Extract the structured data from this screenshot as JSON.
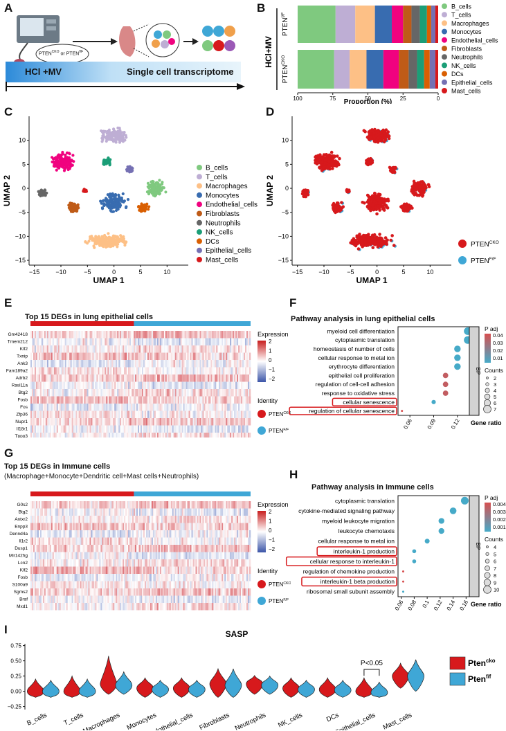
{
  "panels": {
    "a": {
      "letter": "A",
      "pten_label": "PTEN",
      "pten_cko_sup": "CKO",
      "or_text": " or ",
      "pten_ff_sup": "f/F",
      "banner_left": "HCl +MV",
      "banner_right": "Single cell transcriptome"
    },
    "b": {
      "letter": "B",
      "group_label": "HCl+MV",
      "row1_label": "PTEN",
      "row1_sup": "f/F",
      "row2_label": "PTEN",
      "row2_sup": "CKO",
      "xlabel": "Proportion (%)",
      "xticks": [
        "100",
        "75",
        "50",
        "25",
        "0"
      ]
    },
    "c": {
      "letter": "C",
      "xlabel": "UMAP 1",
      "ylabel": "UMAP 2"
    },
    "d": {
      "letter": "D",
      "xlabel": "UMAP 1",
      "ylabel": "UMAP 2",
      "legend": [
        {
          "label": "PTEN",
          "sup": "CKO",
          "color": "#d7191c"
        },
        {
          "label": "PTEN",
          "sup": "F/F",
          "color": "#3fa7d6"
        }
      ]
    },
    "e": {
      "letter": "E",
      "title": "Top 15 DEGs in lung epithelial cells",
      "legend_title": "Expression",
      "legend_ticks": [
        "2",
        "1",
        "0",
        "−1",
        "−2"
      ],
      "identity_title": "Identity",
      "identity": [
        {
          "label": "PTEN",
          "sup": "CKO",
          "color": "#d7191c"
        },
        {
          "label": "PTEN",
          "sup": "F/F",
          "color": "#3fa7d6"
        }
      ],
      "genes": [
        "Gm42418",
        "Tmem212",
        "Klf2",
        "Txnip",
        "Ank3",
        "Fam189a2",
        "Adrb2",
        "Rasl11a",
        "Btg2",
        "Fosb",
        "Fos",
        "Zfp36",
        "Nupr1",
        "Il18r1",
        "Tppp3"
      ]
    },
    "f": {
      "letter": "F",
      "title": "Pathway analysis in lung epithelial cells",
      "xlabel": "Gene ratio",
      "strip": "BP",
      "padj_title": "P adj",
      "padj_ticks": [
        "0.04",
        "0.03",
        "0.02",
        "0.01"
      ],
      "counts_title": "Counts",
      "counts": [
        "2",
        "3",
        "4",
        "5",
        "6",
        "7"
      ]
    },
    "g": {
      "letter": "G",
      "title": "Top 15 DEGs in Immune cells",
      "subtitle": "(Macrophage+Monocyte+Dendritic cell+Mast cells+Neutrophils)",
      "legend_title": "Expression",
      "legend_ticks": [
        "2",
        "1",
        "0",
        "−1",
        "−2"
      ],
      "identity_title": "Identity",
      "identity": [
        {
          "label": "PTEN",
          "sup": "CKO",
          "color": "#d7191c"
        },
        {
          "label": "PTEN",
          "sup": "F/F",
          "color": "#3fa7d6"
        }
      ],
      "genes": [
        "G0s2",
        "Btg2",
        "Antxr2",
        "Enpp3",
        "Dennd4a",
        "Il1r2",
        "Dusp1",
        "Mir142hg",
        "Lcn2",
        "Klf2",
        "Fosb",
        "S100a9",
        "Sgms2",
        "Braf",
        "Mxd1"
      ]
    },
    "h": {
      "letter": "H",
      "title": "Pathway analysis in Immune cells",
      "xlabel": "Gene ratio",
      "strip": "BP",
      "padj_title": "P adj",
      "padj_ticks": [
        "0.004",
        "0.003",
        "0.002",
        "0.001"
      ],
      "counts_title": "Counts",
      "counts": [
        "4",
        "5",
        "6",
        "7",
        "8",
        "9",
        "10"
      ]
    },
    "i": {
      "letter": "I",
      "title": "SASP",
      "pvalue": "P<0.05",
      "legend": [
        {
          "label": "Pten",
          "sup": "cko",
          "color": "#d7191c"
        },
        {
          "label": "Pten",
          "sup": "f/f",
          "color": "#3fa7d6"
        }
      ]
    }
  },
  "cell_types": [
    {
      "name": "B_cells",
      "color": "#7fc97f"
    },
    {
      "name": "T_cells",
      "color": "#beaed4"
    },
    {
      "name": "Macrophages",
      "color": "#fdc086"
    },
    {
      "name": "Monocytes",
      "color": "#386cb0"
    },
    {
      "name": "Endothelial_cells",
      "color": "#f0027f"
    },
    {
      "name": "Fibroblasts",
      "color": "#bf5b17"
    },
    {
      "name": "Neutrophils",
      "color": "#666666"
    },
    {
      "name": "NK_cells",
      "color": "#1b9e77"
    },
    {
      "name": "DCs",
      "color": "#d95f02"
    },
    {
      "name": "Epithelial_cells",
      "color": "#7570b3"
    },
    {
      "name": "Mast_cells",
      "color": "#d7191c"
    }
  ],
  "chart_data": [
    {
      "id": "B",
      "type": "bar",
      "stacked": true,
      "orientation": "horizontal",
      "title": "",
      "xlabel": "Proportion (%)",
      "xlim": [
        100,
        0
      ],
      "categories": [
        "PTEN f/F",
        "PTEN CKO"
      ],
      "series": [
        {
          "name": "B_cells",
          "values": [
            27,
            26
          ]
        },
        {
          "name": "T_cells",
          "values": [
            14,
            11
          ]
        },
        {
          "name": "Macrophages",
          "values": [
            14,
            12
          ]
        },
        {
          "name": "Monocytes",
          "values": [
            12,
            12
          ]
        },
        {
          "name": "Endothelial_cells",
          "values": [
            8,
            11
          ]
        },
        {
          "name": "Fibroblasts",
          "values": [
            6,
            7
          ]
        },
        {
          "name": "Neutrophils",
          "values": [
            6,
            6
          ]
        },
        {
          "name": "NK_cells",
          "values": [
            5,
            5
          ]
        },
        {
          "name": "DCs",
          "values": [
            3,
            4
          ]
        },
        {
          "name": "Epithelial_cells",
          "values": [
            3,
            4
          ]
        },
        {
          "name": "Mast_cells",
          "values": [
            2,
            2
          ]
        }
      ]
    },
    {
      "id": "C",
      "type": "scatter",
      "xlabel": "UMAP 1",
      "ylabel": "UMAP 2",
      "xlim": [
        -16,
        14
      ],
      "ylim": [
        -16,
        15
      ],
      "xticks": [
        -15,
        -10,
        -5,
        0,
        5,
        10
      ],
      "yticks": [
        -15,
        -10,
        -5,
        0,
        5,
        10
      ],
      "clusters": [
        {
          "name": "B_cells",
          "center": [
            8,
            0
          ],
          "spread": [
            2.2,
            2.0
          ]
        },
        {
          "name": "T_cells",
          "center": [
            0,
            11
          ],
          "spread": [
            3,
            2
          ]
        },
        {
          "name": "Macrophages",
          "center": [
            -1,
            -11
          ],
          "spread": [
            5,
            1.8
          ]
        },
        {
          "name": "Monocytes",
          "center": [
            0,
            -3
          ],
          "spread": [
            2.8,
            2.5
          ]
        },
        {
          "name": "Endothelial_cells",
          "center": [
            -9.5,
            5.5
          ],
          "spread": [
            3,
            2.3
          ]
        },
        {
          "name": "Fibroblasts",
          "center": [
            -7.5,
            -4
          ],
          "spread": [
            1.3,
            1.3
          ]
        },
        {
          "name": "Neutrophils",
          "center": [
            -13.5,
            -1
          ],
          "spread": [
            1,
            1
          ]
        },
        {
          "name": "NK_cells",
          "center": [
            -1.5,
            5.5
          ],
          "spread": [
            1,
            1
          ]
        },
        {
          "name": "DCs",
          "center": [
            5.5,
            -4
          ],
          "spread": [
            1.4,
            1
          ]
        },
        {
          "name": "Epithelial_cells",
          "center": [
            3,
            4
          ],
          "spread": [
            0.8,
            0.8
          ]
        },
        {
          "name": "Mast_cells",
          "center": [
            -5.5,
            -0.5
          ],
          "spread": [
            0.4,
            0.4
          ]
        }
      ]
    },
    {
      "id": "D",
      "type": "scatter",
      "xlabel": "UMAP 1",
      "ylabel": "UMAP 2",
      "xlim": [
        -16,
        14
      ],
      "ylim": [
        -16,
        15
      ],
      "xticks": [
        -15,
        -10,
        -5,
        0,
        5,
        10
      ],
      "yticks": [
        -15,
        -10,
        -5,
        0,
        5,
        10
      ],
      "series": [
        "PTEN CKO",
        "PTEN F/F"
      ]
    },
    {
      "id": "F",
      "type": "scatter",
      "title": "Pathway analysis in lung epithelial cells",
      "xlabel": "Gene ratio",
      "xlim": [
        0.045,
        0.135
      ],
      "xticks": [
        0.06,
        0.09,
        0.12
      ],
      "categories": [
        "myeloid cell differentiation",
        "cytoplasmic translation",
        "homeostasis of number of cells",
        "cellular response to metal ion",
        "erythrocyte differentiation",
        "epithelial cell proliferation",
        "regulation of cell-cell adhesion",
        "response to oxidative stress",
        "cellular senescence",
        "regulation of cellular senescence"
      ],
      "gene_ratio": [
        0.133,
        0.133,
        0.12,
        0.12,
        0.12,
        0.105,
        0.105,
        0.105,
        0.09,
        0.05
      ],
      "count": [
        7,
        7,
        6,
        6,
        6,
        5,
        5,
        5,
        4,
        2
      ],
      "p_adj": [
        0.01,
        0.01,
        0.01,
        0.01,
        0.01,
        0.04,
        0.04,
        0.04,
        0.01,
        0.045
      ],
      "highlighted": [
        "cellular senescence",
        "regulation of cellular senescence"
      ]
    },
    {
      "id": "H",
      "type": "scatter",
      "title": "Pathway analysis in Immune cells",
      "xlabel": "Gene ratio",
      "xlim": [
        0.055,
        0.165
      ],
      "xticks": [
        0.06,
        0.08,
        0.1,
        0.12,
        0.14,
        0.16
      ],
      "categories": [
        "cytoplasmic translation",
        "cytokine-mediated signaling pathway",
        "myeloid leukocyte migration",
        "leukocyte chemotaxis",
        "cellular response to metal ion",
        "interleukin-1 production",
        "cellular response to interleukin-1",
        "regulation of chemokine production",
        "interleukin-1 beta production",
        "ribosomal small subunit assembly"
      ],
      "gene_ratio": [
        0.158,
        0.14,
        0.122,
        0.122,
        0.1,
        0.08,
        0.08,
        0.063,
        0.063,
        0.063
      ],
      "count": [
        10,
        9,
        8,
        8,
        7,
        6,
        6,
        4,
        4,
        4
      ],
      "p_adj": [
        0.0015,
        0.0015,
        0.0015,
        0.0015,
        0.0015,
        0.0015,
        0.0015,
        0.004,
        0.004,
        0.0015
      ],
      "highlighted": [
        "interleukin-1 production",
        "cellular response to interleukin-1",
        "interleukin-1 beta production"
      ]
    },
    {
      "id": "I",
      "type": "violin",
      "title": "SASP",
      "ylim": [
        -0.3,
        0.78
      ],
      "yticks": [
        -0.25,
        0,
        0.25,
        0.5,
        0.75
      ],
      "categories": [
        "B_cells",
        "T_cells",
        "Macrophages",
        "Monocytes",
        "Endothelial_cells",
        "Fibroblasts",
        "Neutrophils",
        "NK_cells",
        "DCs",
        "Epithelial_cells",
        "Mast_cells"
      ],
      "series": [
        {
          "name": "Pten cko",
          "median": [
            0.0,
            0.0,
            0.12,
            0.05,
            0.05,
            0.12,
            0.12,
            0.05,
            0.03,
            0.0,
            0.25
          ],
          "min": [
            -0.1,
            -0.1,
            -0.05,
            -0.1,
            -0.1,
            -0.1,
            -0.05,
            -0.1,
            -0.1,
            -0.1,
            0.05
          ],
          "max": [
            0.2,
            0.25,
            0.58,
            0.22,
            0.22,
            0.37,
            0.26,
            0.22,
            0.22,
            0.22,
            0.46
          ]
        },
        {
          "name": "Pten f/f",
          "median": [
            0.0,
            0.0,
            0.1,
            0.03,
            0.03,
            0.1,
            0.1,
            0.03,
            0.02,
            -0.02,
            0.25
          ],
          "min": [
            -0.1,
            -0.1,
            -0.05,
            -0.1,
            -0.1,
            -0.1,
            -0.05,
            -0.1,
            -0.1,
            -0.1,
            0.0
          ],
          "max": [
            0.18,
            0.2,
            0.32,
            0.18,
            0.18,
            0.37,
            0.25,
            0.18,
            0.18,
            0.15,
            0.52
          ]
        }
      ],
      "annotation": "P<0.05 on Epithelial_cells"
    }
  ]
}
